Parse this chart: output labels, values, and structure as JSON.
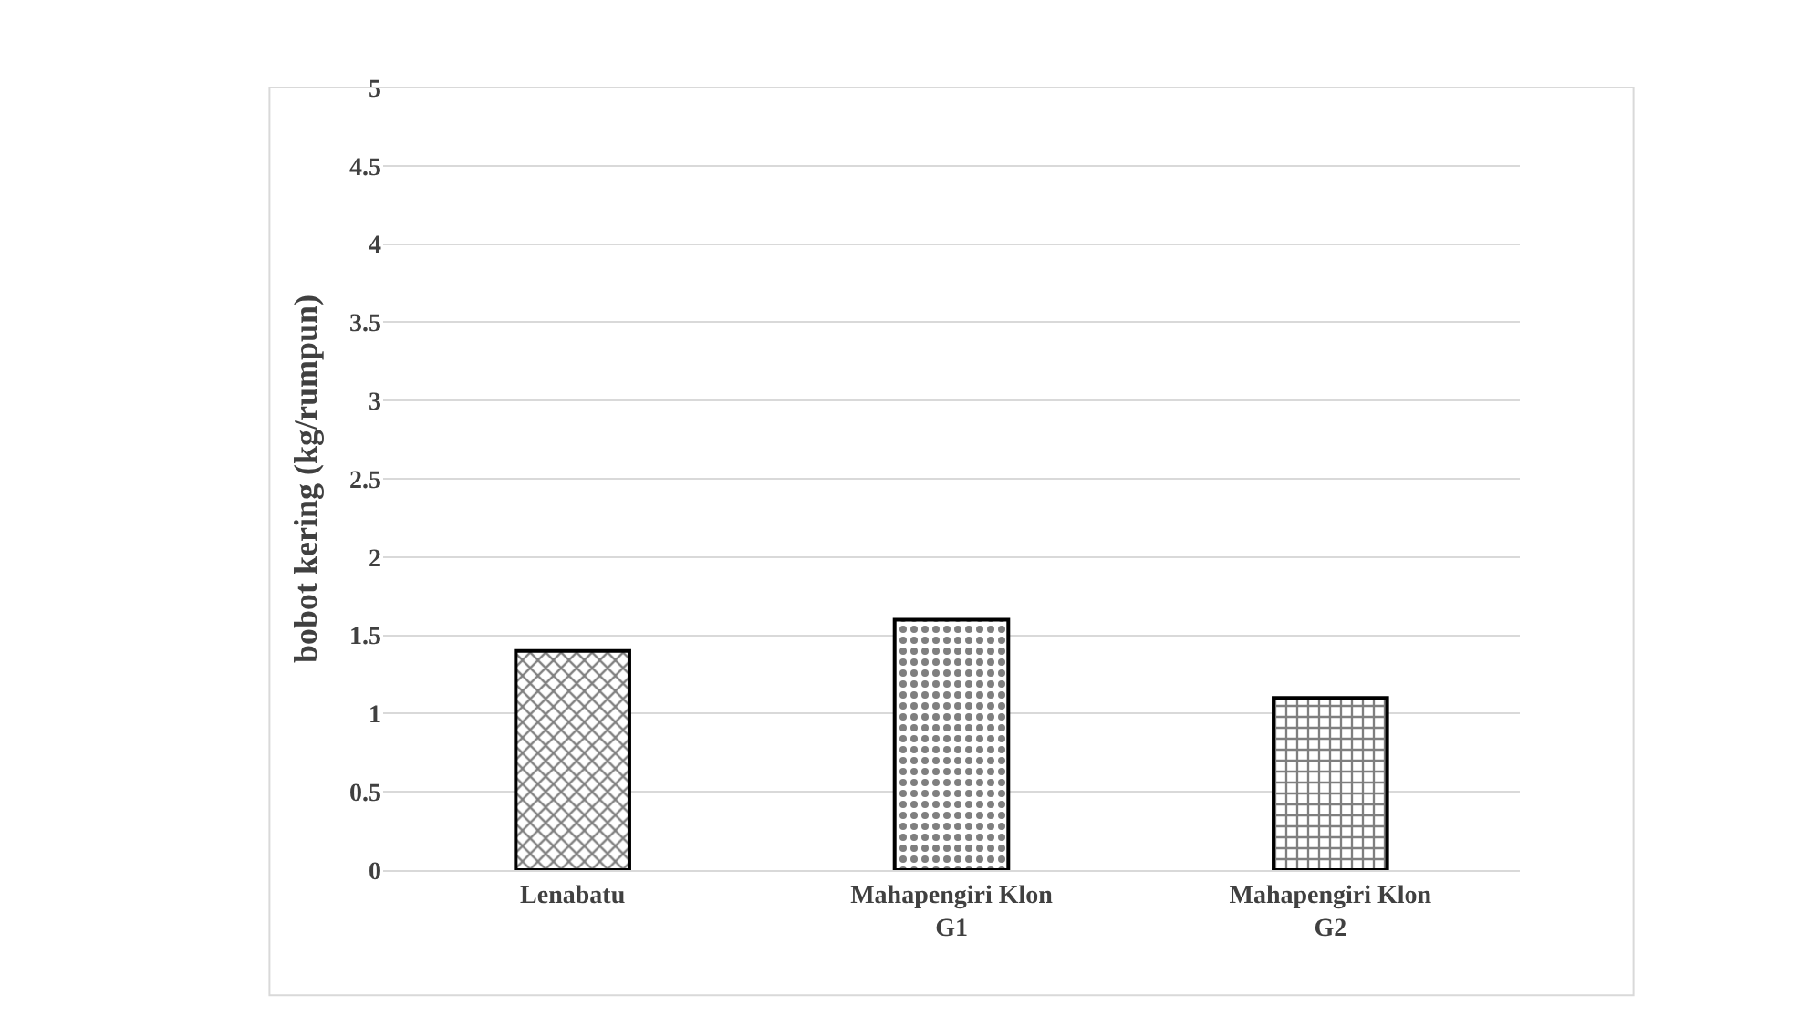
{
  "chart_data": {
    "type": "bar",
    "ylabel": "bobot kering (kg/rumpun)",
    "categories": [
      "Lenabatu",
      "Mahapengiri Klon G1",
      "Mahapengiri Klon G2"
    ],
    "values": [
      1.4,
      1.6,
      1.1
    ],
    "color": "#000000",
    "ylim": [
      0,
      5
    ],
    "yticks": [
      0,
      0.5,
      1,
      1.5,
      2,
      2.5,
      3,
      3.5,
      4,
      4.5,
      5
    ],
    "grid": "y",
    "legend": false
  }
}
